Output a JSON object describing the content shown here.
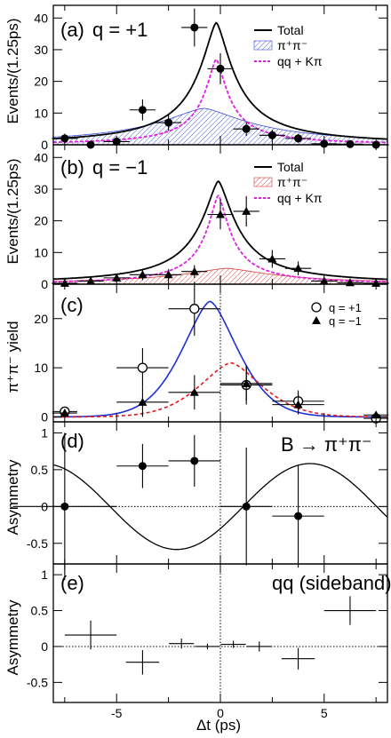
{
  "chart_data": [
    {
      "type": "scatter",
      "panel_label": "(a)",
      "title": "q = +1",
      "ylabel": "Events/(1.25ps)",
      "ylim": [
        0,
        44
      ],
      "yticks": [
        "0",
        "10",
        "20",
        "30",
        "40"
      ],
      "legend": [
        "Total",
        "π⁺π⁻",
        "qq + Kπ"
      ],
      "legend_position": "top-right",
      "points": {
        "marker": "filled-circle",
        "x": [
          -7.5,
          -6.25,
          -5,
          -3.75,
          -2.5,
          -1.25,
          0,
          1.25,
          2.5,
          3.75,
          5,
          6.25,
          7.5
        ],
        "y": [
          2,
          0,
          1,
          11,
          7,
          37,
          24,
          5,
          3,
          2,
          0.3,
          0.2,
          0
        ],
        "yerr": [
          1.5,
          1,
          1,
          3.3,
          2.6,
          6,
          4.9,
          2.2,
          1.7,
          1.4,
          1,
          1,
          1
        ]
      },
      "curves": [
        {
          "name": "Total",
          "style": "solid-black",
          "peak_x": -0.2,
          "peak_y": 38.5
        },
        {
          "name": "π⁺π⁻",
          "style": "blue-hatched",
          "peak_x": -0.8,
          "peak_y": 11.5
        },
        {
          "name": "qq + Kπ",
          "style": "magenta-dashed",
          "peak_x": -0.2,
          "peak_y": 27
        }
      ]
    },
    {
      "type": "scatter",
      "panel_label": "(b)",
      "title": "q = −1",
      "ylabel": "Events/(1.25ps)",
      "ylim": [
        0,
        44
      ],
      "yticks": [
        "0",
        "10",
        "20",
        "30",
        "40"
      ],
      "legend": [
        "Total",
        "π⁺π⁻",
        "qq + Kπ"
      ],
      "legend_position": "top-right",
      "points": {
        "marker": "filled-triangle",
        "x": [
          -7.5,
          -6.25,
          -5,
          -3.75,
          -2.5,
          -1.25,
          0,
          1.25,
          2.5,
          3.75,
          5,
          6.25,
          7.5
        ],
        "y": [
          0.3,
          1,
          2,
          3,
          3,
          4,
          22,
          23,
          8,
          5,
          1,
          0.5,
          0.3
        ],
        "yerr": [
          1,
          1,
          1.4,
          1.7,
          1.7,
          2,
          4.7,
          4.8,
          2.8,
          2.2,
          1,
          1,
          1
        ]
      },
      "curves": [
        {
          "name": "Total",
          "style": "solid-black",
          "peak_x": -0.1,
          "peak_y": 32.5
        },
        {
          "name": "π⁺π⁻",
          "style": "red-hatched",
          "peak_x": 0.3,
          "peak_y": 5
        },
        {
          "name": "qq + Kπ",
          "style": "magenta-dashed",
          "peak_x": -0.1,
          "peak_y": 28
        }
      ]
    },
    {
      "type": "scatter",
      "panel_label": "(c)",
      "ylabel": "π⁺π⁻ yield",
      "ylim": [
        -1,
        27
      ],
      "yticks": [
        "0",
        "10",
        "20"
      ],
      "legend": [
        "q = +1",
        "q = −1"
      ],
      "legend_position": "top-right",
      "series": [
        {
          "name": "q = +1",
          "marker": "open-circle",
          "x": [
            -7.5,
            -3.75,
            -1.25,
            1.25,
            3.75,
            7.5
          ],
          "y": [
            1.1,
            10,
            22,
            6.5,
            3.2,
            -0.3
          ],
          "xerr": [
            0.6,
            1.25,
            1.25,
            1.25,
            1.25,
            0.6
          ],
          "yerr": [
            1,
            4,
            5.5,
            4,
            2.2,
            0.8
          ]
        },
        {
          "name": "q = −1",
          "marker": "filled-triangle",
          "x": [
            -7.5,
            -3.75,
            -1.25,
            1.25,
            3.75,
            7.5
          ],
          "y": [
            0.8,
            3,
            5,
            6.8,
            2.5,
            0.4
          ],
          "xerr": [
            0.6,
            1.25,
            1.25,
            1.25,
            1.25,
            0.6
          ],
          "yerr": [
            0.6,
            3,
            3.5,
            3.5,
            2,
            0.5
          ]
        }
      ],
      "curves": [
        {
          "style": "blue-solid",
          "peak_x": -0.5,
          "peak_y": 23.5
        },
        {
          "style": "red-dashed",
          "peak_x": 0.5,
          "peak_y": 11
        }
      ]
    },
    {
      "type": "scatter",
      "panel_label": "(d)",
      "annotation": "B → π⁺π⁻",
      "ylabel": "Asymmetry",
      "ylim": [
        -0.78,
        1.15
      ],
      "yticks": [
        "-0.5",
        "0",
        "0.5",
        "1"
      ],
      "points": {
        "marker": "filled-circle",
        "x": [
          -7.5,
          -3.75,
          -1.25,
          1.25,
          3.75
        ],
        "y": [
          0,
          0.55,
          0.62,
          0,
          -0.13
        ],
        "xerr": [
          2.5,
          1.25,
          1.25,
          1.25,
          1.25
        ],
        "yerr": [
          1.0,
          0.3,
          0.35,
          0.8,
          0.7
        ]
      },
      "curve": {
        "style": "black-solid",
        "form": "S·sin(ωΔt) + C·cos(ωΔt)",
        "S": 0.5,
        "C": -0.3,
        "omega": 0.489
      }
    },
    {
      "type": "scatter",
      "panel_label": "(e)",
      "annotation": "qq (sideband)",
      "ylabel": "Asymmetry",
      "xlabel": "Δt (ps)",
      "xlim": [
        -8.05,
        8.05
      ],
      "xticks": [
        "-5",
        "0",
        "5"
      ],
      "ylim": [
        -0.78,
        1.15
      ],
      "yticks": [
        "-0.5",
        "0",
        "0.5",
        "1"
      ],
      "points": {
        "marker": "none",
        "x": [
          -6.25,
          -3.75,
          -1.875,
          -0.625,
          0.625,
          1.875,
          3.75,
          6.25
        ],
        "y": [
          0.16,
          -0.22,
          0.04,
          0.0,
          0.03,
          0.0,
          -0.17,
          0.5
        ],
        "xerr": [
          1.25,
          0.8,
          0.6,
          0.6,
          0.6,
          0.6,
          0.8,
          1.25
        ],
        "yerr": [
          0.2,
          0.17,
          0.07,
          0.04,
          0.05,
          0.07,
          0.15,
          0.2
        ]
      }
    }
  ]
}
